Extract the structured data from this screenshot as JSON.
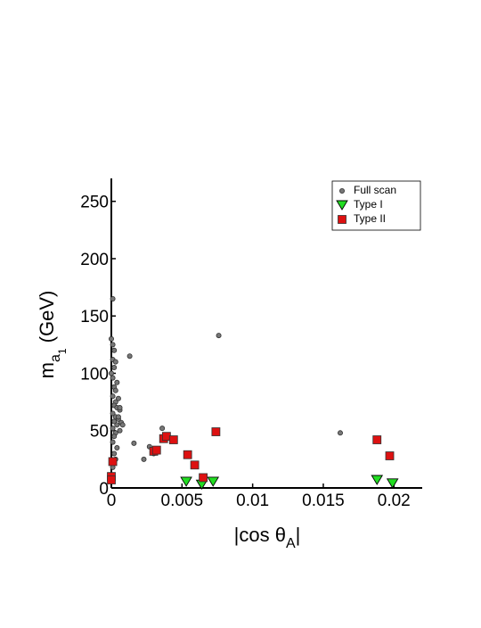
{
  "chart_data": {
    "type": "scatter",
    "x_label": {
      "main": "|cos θ",
      "sub": "A",
      "end": "|"
    },
    "y_label": {
      "main": "m",
      "sub": "a",
      "subsub": "1",
      "end": " (GeV)"
    },
    "xlim": [
      0,
      0.022
    ],
    "ylim": [
      0,
      270
    ],
    "xticks": [
      0,
      0.005,
      0.01,
      0.015,
      0.02
    ],
    "yticks": [
      0,
      50,
      100,
      150,
      200,
      250
    ],
    "legend": "upper right",
    "series": [
      {
        "name": "Full scan",
        "color": "#777777",
        "marker": "circle",
        "x": [
          0.0001,
          0.0,
          0.0001,
          0.0002,
          0.0001,
          0.0003,
          0.0002,
          0.0,
          0.0001,
          0.0004,
          0.0002,
          0.0003,
          0.0001,
          0.0005,
          0.0003,
          0.0002,
          0.0004,
          0.0006,
          0.0001,
          0.0003,
          0.0005,
          0.0002,
          0.0007,
          0.0004,
          0.0001,
          0.0006,
          0.0003,
          0.0008,
          0.0002,
          0.0005,
          0.0001,
          0.0004,
          0.0002,
          0.0003,
          0.0006,
          0.0001,
          0.0076,
          0.0013,
          0.0016,
          0.0023,
          0.0027,
          0.0036,
          0.0039,
          0.0162,
          0.003
        ],
        "values": [
          165,
          130,
          125,
          120,
          112,
          110,
          105,
          100,
          96,
          92,
          88,
          85,
          80,
          78,
          75,
          72,
          70,
          68,
          65,
          62,
          60,
          58,
          57,
          55,
          52,
          50,
          48,
          55,
          45,
          62,
          40,
          35,
          30,
          25,
          70,
          18,
          133,
          115,
          39,
          25,
          36,
          52,
          45,
          48,
          30
        ]
      },
      {
        "name": "Type I",
        "color": "#22dd22",
        "marker": "triangle-down",
        "x": [
          0.0053,
          0.0064,
          0.0072,
          0.0188,
          0.0199
        ],
        "values": [
          5.5,
          3,
          5.5,
          7,
          4
        ]
      },
      {
        "name": "Type II",
        "color": "#dd1111",
        "marker": "square",
        "x": [
          0,
          0,
          0.0001,
          0.003,
          0.0032,
          0.0037,
          0.0039,
          0.0044,
          0.0054,
          0.0059,
          0.0065,
          0.0074,
          0.0188,
          0.0197
        ],
        "values": [
          10,
          7,
          23,
          32,
          33,
          43,
          45,
          42,
          29,
          20,
          9,
          49,
          42,
          28
        ]
      }
    ]
  }
}
